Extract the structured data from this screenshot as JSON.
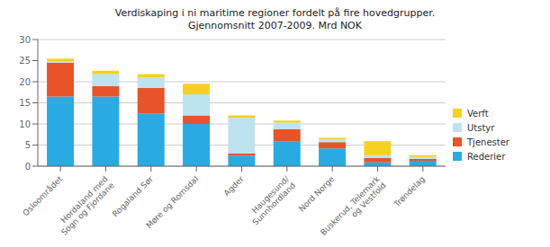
{
  "chart_data": {
    "type": "bar",
    "title": "Verdiskaping i ni maritime regioner fordelt på fire hovedgrupper.\nGjennomsnitt 2007-2009. Mrd NOK",
    "categories": [
      "Osloområdet",
      "Hordaland med\nSogn og Fjordane",
      "Rogaland Sør",
      "Møre og Romsdal",
      "Agder",
      "Haugesund/\nSunnhordland",
      "Nord Norge",
      "Buskerud, Telemark\nog Vestfold",
      "Trøndelag"
    ],
    "series": [
      {
        "name": "Rederier",
        "color": "#29ABE2",
        "values": [
          16.5,
          16.5,
          12.5,
          10.0,
          2.5,
          5.8,
          4.2,
          0.9,
          1.3
        ]
      },
      {
        "name": "Tjenester",
        "color": "#E8532A",
        "values": [
          8.0,
          2.5,
          6.0,
          2.0,
          0.5,
          3.0,
          1.5,
          1.0,
          0.4
        ]
      },
      {
        "name": "Utstyr",
        "color": "#BDE3F0",
        "values": [
          0.3,
          2.8,
          2.5,
          5.0,
          8.5,
          1.5,
          0.7,
          0.7,
          0.5
        ]
      },
      {
        "name": "Verft",
        "color": "#F5D020",
        "values": [
          0.7,
          0.8,
          0.8,
          2.5,
          0.5,
          0.5,
          0.3,
          3.3,
          0.4
        ]
      }
    ],
    "stacked": true,
    "ylim": [
      0,
      30
    ],
    "yticks": [
      0,
      5,
      10,
      15,
      20,
      25,
      30
    ],
    "grid": true,
    "legend": "right"
  }
}
